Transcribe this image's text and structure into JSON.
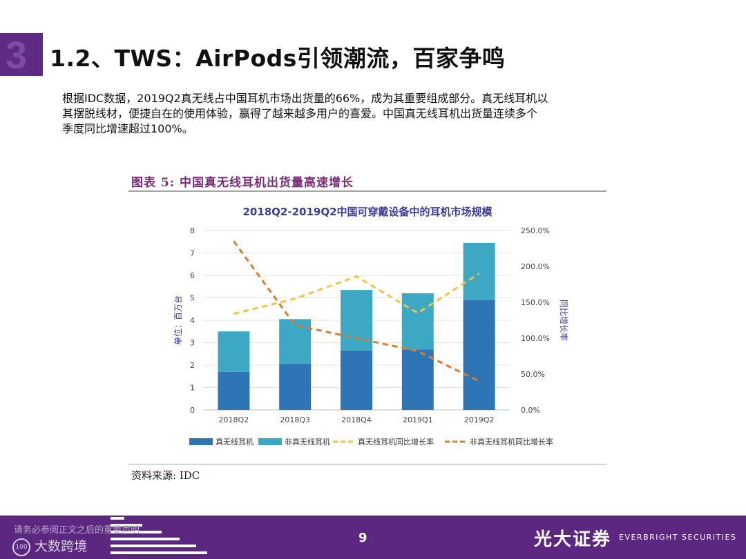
{
  "slide": {
    "title": "1.2、TWS：AirPods引领潮流，百家争鸣",
    "paragraph_lines": [
      "根据IDC数据，2019Q2真无线占中国耳机市场出货量的66%，成为其重要组成部分。真无线耳机以",
      "其摆脱线材，便捷自在的使用体验，赢得了越来越多用户的喜爱。中国真无线耳机出货量连续多个",
      "季度同比增速超过100%。"
    ],
    "figure_title": "图表 5:  中国真无线耳机出货量高速增长",
    "source": "资料来源:  IDC"
  },
  "footer": {
    "disclaimer": "请务必参阅正文之后的重要声明",
    "page_number": "9",
    "brand_cn": "光大证券",
    "brand_en": "EVERBRIGHT SECURITIES",
    "watermark": "大数跨境",
    "watermark_badge": "100"
  },
  "colors": {
    "brand_purple": "#5c2780",
    "true_wireless": "#2e75b6",
    "non_true_wireless": "#3ca8c4",
    "true_wireless_growth": "#f5c342",
    "non_true_wireless_growth": "#e07b2e",
    "chart_title": "#3b3b9b"
  },
  "chart_data": {
    "type": "bar",
    "title": "2018Q2-2019Q2中国可穿戴设备中的耳机市场规模",
    "categories": [
      "2018Q2",
      "2018Q3",
      "2018Q4",
      "2019Q1",
      "2019Q2"
    ],
    "y_left": {
      "label": "单位：百万台",
      "min": 0,
      "max": 8,
      "ticks": [
        "0",
        "1",
        "2",
        "3",
        "4",
        "5",
        "6",
        "7",
        "8"
      ]
    },
    "y_right": {
      "label": "同比增长率",
      "min": 0,
      "max": 250,
      "ticks": [
        "0.0%",
        "50.0%",
        "100.0%",
        "150.0%",
        "200.0%",
        "250.0%"
      ]
    },
    "stacked": true,
    "series": [
      {
        "name": "真无线耳机",
        "kind": "bar",
        "axis": "left",
        "values": [
          1.7,
          2.05,
          2.65,
          2.7,
          4.9
        ]
      },
      {
        "name": "非真无线耳机",
        "kind": "bar",
        "axis": "left",
        "values": [
          1.8,
          2.0,
          2.7,
          2.5,
          2.55
        ]
      },
      {
        "name": "真无线耳机同比增长率",
        "kind": "line",
        "axis": "right",
        "dashed": true,
        "values": [
          134,
          155,
          186,
          135,
          190
        ]
      },
      {
        "name": "非真无线耳机同比增长率",
        "kind": "line",
        "axis": "right",
        "dashed": true,
        "values": [
          235,
          118,
          100,
          82,
          40
        ]
      }
    ],
    "legend_position": "bottom",
    "grid": true
  }
}
